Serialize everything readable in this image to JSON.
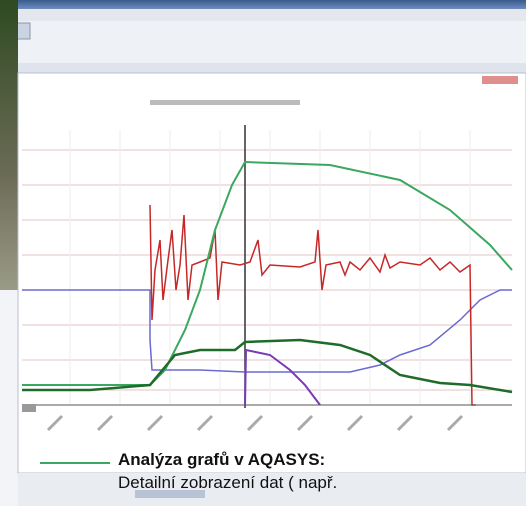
{
  "caption": {
    "title": "Analýza grafů v AQASYS:",
    "line": "Detailní zobrazení dat ( např."
  }
}
